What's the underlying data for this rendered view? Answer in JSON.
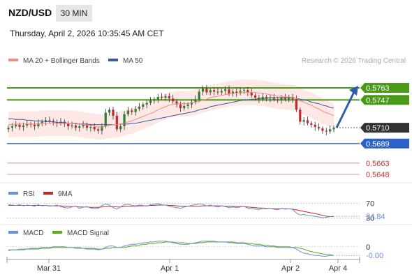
{
  "header": {
    "pair": "NZD/USD",
    "timeframe": "30 MIN",
    "timestamp": "Thursday, April 2, 2026 10:35:45 AM CET"
  },
  "colors": {
    "ma20": "#f28b82",
    "ma50": "#3b5998",
    "bollinger_fill": "#fde0dc",
    "resistance": "#4a9a1a",
    "support": "#2d62c9",
    "support_light": "#e57373",
    "last_price": "#333333",
    "candle_up": "#2e7d32",
    "candle_down": "#c62828",
    "arrow": "#2c5ea8",
    "rsi": "#6b8fd6",
    "rsi_ma": "#c62828",
    "macd": "#6b8fd6",
    "macd_signal": "#5aaa1a"
  },
  "chart_data": [
    {
      "type": "candlestick",
      "legend": [
        {
          "name": "MA 20 + Bollinger Bands",
          "color": "#f28b82"
        },
        {
          "name": "MA 50",
          "color": "#3b5998"
        }
      ],
      "legend_position": "top-left",
      "credit": "Research © 2026 Trading Central",
      "x_ticks": [
        "Mar 31",
        "Apr 1",
        "Apr 2",
        "Apr 4"
      ],
      "ylim": [
        0.564,
        0.5772
      ],
      "levels": [
        {
          "label": "0.5763",
          "value": 0.5763,
          "kind": "resistance"
        },
        {
          "label": "0.5747",
          "value": 0.5747,
          "kind": "resistance"
        },
        {
          "label": "0.5710",
          "value": 0.571,
          "kind": "last"
        },
        {
          "label": "0.5689",
          "value": 0.5689,
          "kind": "support"
        },
        {
          "label": "0.5663",
          "value": 0.5663,
          "kind": "support_light"
        },
        {
          "label": "0.5648",
          "value": 0.5648,
          "kind": "support_light"
        }
      ],
      "close_series": [
        0.571,
        0.5712,
        0.5714,
        0.5711,
        0.5713,
        0.5715,
        0.5714,
        0.5712,
        0.5716,
        0.5718,
        0.572,
        0.5719,
        0.5717,
        0.5716,
        0.5718,
        0.5715,
        0.5712,
        0.5713,
        0.571,
        0.5712,
        0.5714,
        0.571,
        0.5711,
        0.5708,
        0.5706,
        0.5712,
        0.573,
        0.5734,
        0.5726,
        0.5708,
        0.5712,
        0.5728,
        0.5733,
        0.5731,
        0.5735,
        0.5738,
        0.5741,
        0.5743,
        0.5746,
        0.5748,
        0.5751,
        0.575,
        0.5752,
        0.5749,
        0.5745,
        0.5741,
        0.5736,
        0.5739,
        0.5741,
        0.5744,
        0.5748,
        0.5758,
        0.5762,
        0.5757,
        0.576,
        0.5758,
        0.5757,
        0.5759,
        0.5761,
        0.5755,
        0.5758,
        0.5756,
        0.5759,
        0.576,
        0.5757,
        0.5753,
        0.575,
        0.5748,
        0.5751,
        0.5749,
        0.575,
        0.5748,
        0.5747,
        0.575,
        0.5748,
        0.5751,
        0.5748,
        0.5734,
        0.5718,
        0.572,
        0.5716,
        0.5714,
        0.5711,
        0.5709,
        0.5706,
        0.5705,
        0.5708,
        0.571
      ],
      "ma20": [
        0.5714,
        0.5714,
        0.5715,
        0.5715,
        0.5715,
        0.5715,
        0.5715,
        0.5715,
        0.5715,
        0.5716,
        0.5716,
        0.5716,
        0.5716,
        0.5716,
        0.5716,
        0.5716,
        0.5716,
        0.5716,
        0.5715,
        0.5715,
        0.5714,
        0.5713,
        0.5713,
        0.5712,
        0.5711,
        0.5711,
        0.5712,
        0.5713,
        0.5714,
        0.5714,
        0.5715,
        0.5716,
        0.5718,
        0.5719,
        0.5721,
        0.5723,
        0.5725,
        0.5727,
        0.5729,
        0.5731,
        0.5734,
        0.5736,
        0.5738,
        0.574,
        0.5741,
        0.5742,
        0.5742,
        0.5742,
        0.5742,
        0.5743,
        0.5744,
        0.5745,
        0.5747,
        0.5748,
        0.575,
        0.5751,
        0.5752,
        0.5753,
        0.5754,
        0.5755,
        0.5756,
        0.5756,
        0.5757,
        0.5757,
        0.5757,
        0.5757,
        0.5757,
        0.5756,
        0.5756,
        0.5755,
        0.5754,
        0.5753,
        0.5752,
        0.5752,
        0.5751,
        0.5751,
        0.575,
        0.5749,
        0.5746,
        0.5744,
        0.5742,
        0.574,
        0.5737,
        0.5735,
        0.5732,
        0.573,
        0.5728,
        0.5726
      ],
      "ma50": [
        0.5722,
        0.5722,
        0.5721,
        0.5721,
        0.5721,
        0.572,
        0.572,
        0.5719,
        0.5719,
        0.5719,
        0.5718,
        0.5718,
        0.5718,
        0.5717,
        0.5717,
        0.5717,
        0.5716,
        0.5716,
        0.5716,
        0.5715,
        0.5715,
        0.5715,
        0.5714,
        0.5714,
        0.5714,
        0.5714,
        0.5714,
        0.5714,
        0.5714,
        0.5714,
        0.5715,
        0.5715,
        0.5715,
        0.5716,
        0.5716,
        0.5717,
        0.5718,
        0.5719,
        0.572,
        0.5721,
        0.5722,
        0.5723,
        0.5724,
        0.5725,
        0.5726,
        0.5727,
        0.5728,
        0.5729,
        0.573,
        0.5731,
        0.5732,
        0.5734,
        0.5735,
        0.5736,
        0.5738,
        0.5739,
        0.574,
        0.5741,
        0.5742,
        0.5743,
        0.5744,
        0.5745,
        0.5746,
        0.5747,
        0.5747,
        0.5748,
        0.5748,
        0.5749,
        0.5749,
        0.5749,
        0.575,
        0.575,
        0.575,
        0.575,
        0.575,
        0.575,
        0.575,
        0.5749,
        0.5748,
        0.5747,
        0.5746,
        0.5744,
        0.5743,
        0.5742,
        0.574,
        0.5739,
        0.5737,
        0.5736
      ],
      "bollinger_width": 0.0017,
      "projection": {
        "from": 0.571,
        "to": 0.5763
      }
    },
    {
      "type": "line",
      "legend": [
        {
          "name": "RSI",
          "color": "#6b8fd6"
        },
        {
          "name": "9MA",
          "color": "#c62828"
        }
      ],
      "ylim": [
        20,
        80
      ],
      "reference_lines": [
        {
          "label": "70",
          "value": 70
        },
        {
          "label": "30",
          "value": 30
        }
      ],
      "last_value_label": "34.84",
      "rsi": [
        66,
        65,
        64,
        66,
        63,
        65,
        64,
        62,
        66,
        63,
        64,
        62,
        63,
        65,
        61,
        58,
        57,
        60,
        62,
        56,
        59,
        61,
        57,
        55,
        56,
        64,
        68,
        65,
        58,
        54,
        60,
        66,
        67,
        64,
        63,
        65,
        64,
        62,
        66,
        67,
        69,
        66,
        65,
        62,
        60,
        58,
        56,
        60,
        62,
        64,
        66,
        68,
        67,
        63,
        65,
        62,
        60,
        63,
        61,
        58,
        60,
        58,
        60,
        61,
        57,
        55,
        54,
        53,
        56,
        55,
        56,
        54,
        52,
        56,
        54,
        55,
        53,
        44,
        38,
        40,
        37,
        36,
        35,
        33,
        31,
        32,
        34,
        35
      ],
      "rsi_ma": [
        64,
        64,
        64,
        64,
        64,
        64,
        64,
        64,
        64,
        64,
        64,
        63,
        63,
        63,
        63,
        62,
        62,
        61,
        61,
        60,
        60,
        60,
        59,
        59,
        59,
        60,
        61,
        61,
        61,
        60,
        60,
        61,
        62,
        62,
        62,
        63,
        63,
        63,
        64,
        64,
        65,
        65,
        65,
        64,
        64,
        63,
        62,
        62,
        62,
        62,
        62,
        62,
        63,
        63,
        63,
        63,
        63,
        63,
        62,
        62,
        62,
        61,
        61,
        61,
        60,
        59,
        58,
        57,
        57,
        56,
        56,
        55,
        55,
        55,
        55,
        55,
        54,
        52,
        50,
        48,
        46,
        44,
        42,
        40,
        37,
        35,
        34,
        34
      ]
    },
    {
      "type": "line",
      "legend": [
        {
          "name": "MACD",
          "color": "#6b8fd6"
        },
        {
          "name": "MACD Signal",
          "color": "#5aaa1a"
        }
      ],
      "ylim": [
        -0.0016,
        0.0012
      ],
      "zero_label": "0",
      "last_value_label": "-0.00",
      "macd": [
        -0.0005,
        -0.0004,
        -0.0004,
        -0.0003,
        -0.0003,
        -0.0003,
        -0.0002,
        -0.0002,
        -0.0002,
        -0.0001,
        -0.0001,
        -0.0001,
        0,
        0,
        0,
        0,
        -0.0001,
        -0.0001,
        -0.0002,
        -0.0002,
        -0.0002,
        -0.0003,
        -0.0003,
        -0.0003,
        -0.0004,
        -0.0003,
        -0.0001,
        0.0001,
        0.0001,
        -0.0001,
        -0.0001,
        0.0001,
        0.0002,
        0.0003,
        0.0003,
        0.0004,
        0.0005,
        0.0005,
        0.0006,
        0.0006,
        0.0007,
        0.0007,
        0.0007,
        0.0006,
        0.0005,
        0.0004,
        0.0003,
        0.0003,
        0.0003,
        0.0004,
        0.0005,
        0.0006,
        0.0007,
        0.0007,
        0.0007,
        0.0007,
        0.0006,
        0.0006,
        0.0006,
        0.0005,
        0.0005,
        0.0004,
        0.0004,
        0.0004,
        0.0003,
        0.0002,
        0.0001,
        0.0001,
        0.0001,
        0,
        0,
        0,
        -0.0001,
        -0.0001,
        -0.0001,
        -0.0001,
        -0.0001,
        -0.0003,
        -0.0006,
        -0.0008,
        -0.0009,
        -0.001,
        -0.0011,
        -0.0011,
        -0.0012,
        -0.0012,
        -0.0011,
        -0.0011
      ],
      "macd_signal": [
        -0.0004,
        -0.0004,
        -0.0004,
        -0.0004,
        -0.0004,
        -0.0003,
        -0.0003,
        -0.0003,
        -0.0003,
        -0.0002,
        -0.0002,
        -0.0002,
        -0.0001,
        -0.0001,
        -0.0001,
        -0.0001,
        -0.0001,
        -0.0001,
        -0.0001,
        -0.0001,
        -0.0002,
        -0.0002,
        -0.0002,
        -0.0002,
        -0.0003,
        -0.0003,
        -0.0002,
        -0.0002,
        -0.0001,
        -0.0001,
        -0.0001,
        -0.0001,
        0,
        0.0001,
        0.0001,
        0.0002,
        0.0003,
        0.0003,
        0.0004,
        0.0004,
        0.0005,
        0.0005,
        0.0006,
        0.0006,
        0.0006,
        0.0005,
        0.0005,
        0.0005,
        0.0004,
        0.0004,
        0.0004,
        0.0005,
        0.0005,
        0.0006,
        0.0006,
        0.0006,
        0.0006,
        0.0006,
        0.0006,
        0.0006,
        0.0006,
        0.0005,
        0.0005,
        0.0005,
        0.0004,
        0.0004,
        0.0003,
        0.0003,
        0.0002,
        0.0002,
        0.0001,
        0.0001,
        0,
        0,
        0,
        0,
        -0.0001,
        -0.0001,
        -0.0002,
        -0.0003,
        -0.0005,
        -0.0006,
        -0.0007,
        -0.0008,
        -0.0009,
        -0.001,
        -0.001,
        -0.0011
      ]
    }
  ]
}
